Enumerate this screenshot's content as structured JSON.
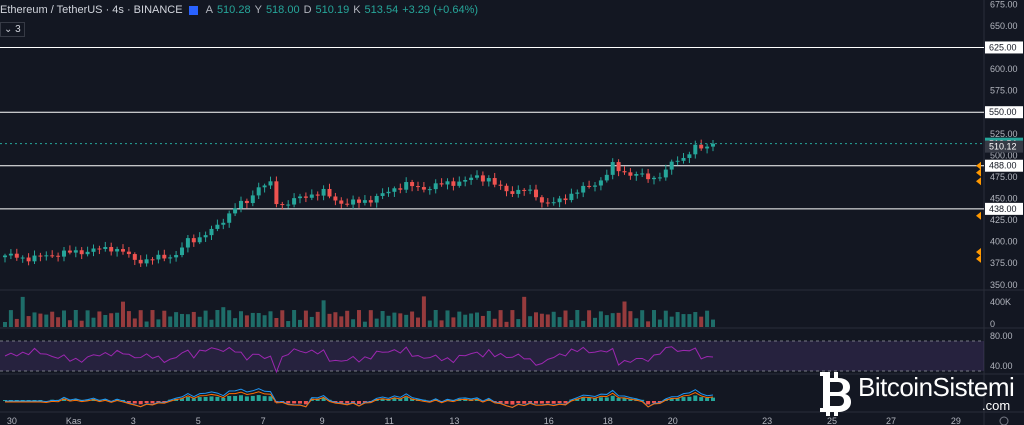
{
  "header": {
    "symbol": "Ethereum / TetherUS · 4s · BINANCE",
    "open_label": "A",
    "open_value": "510.28",
    "high_label": "Y",
    "high_value": "518.00",
    "low_label": "D",
    "low_value": "510.19",
    "close_label": "K",
    "close_value": "513.54",
    "change": "+3.29 (+0.64%)",
    "indicator_count": "3"
  },
  "colors": {
    "background": "#131722",
    "up": "#26a69a",
    "down": "#ef5350",
    "rsi": "#9c27b0",
    "macd": "#2196f3",
    "signal": "#ff6d00",
    "level_line": "#ffffff"
  },
  "chart_data": {
    "type": "candlestick",
    "symbol": "ETH/USDT",
    "price_axis": {
      "ticks": [
        "675.00",
        "650.00",
        "625.00",
        "600.00",
        "575.00",
        "550.00",
        "525.00",
        "500.00",
        "488.00",
        "475.00",
        "450.00",
        "438.00",
        "425.00",
        "400.00",
        "375.00",
        "350.00"
      ],
      "range": [
        344,
        680
      ]
    },
    "levels": [
      {
        "value": 625.0,
        "label": "625.00"
      },
      {
        "value": 550.0,
        "label": "550.00"
      },
      {
        "value": 488.0,
        "label": "488.00"
      },
      {
        "value": 438.0,
        "label": "438.00"
      }
    ],
    "last_price": {
      "value": 513.54,
      "label": "513.54"
    },
    "second_price": {
      "value": 510.12,
      "label": "510.12"
    },
    "time_labels": [
      {
        "label": "30",
        "t": 1
      },
      {
        "label": "Kas",
        "t": 11
      },
      {
        "label": "3",
        "t": 22
      },
      {
        "label": "5",
        "t": 33
      },
      {
        "label": "7",
        "t": 44
      },
      {
        "label": "9",
        "t": 54
      },
      {
        "label": "11",
        "t": 65
      },
      {
        "label": "13",
        "t": 76
      },
      {
        "label": "16",
        "t": 92
      },
      {
        "label": "18",
        "t": 102
      },
      {
        "label": "20",
        "t": 113
      },
      {
        "label": "23",
        "t": 129
      },
      {
        "label": "25",
        "t": 140
      },
      {
        "label": "27",
        "t": 150
      },
      {
        "label": "29",
        "t": 161
      }
    ],
    "close_anchors": [
      [
        0,
        384
      ],
      [
        3,
        381
      ],
      [
        6,
        382
      ],
      [
        9,
        386
      ],
      [
        12,
        388
      ],
      [
        15,
        390
      ],
      [
        18,
        393
      ],
      [
        20,
        388
      ],
      [
        22,
        379
      ],
      [
        24,
        378
      ],
      [
        27,
        383
      ],
      [
        29,
        384
      ],
      [
        31,
        401
      ],
      [
        33,
        405
      ],
      [
        35,
        412
      ],
      [
        37,
        425
      ],
      [
        39,
        440
      ],
      [
        41,
        446
      ],
      [
        43,
        464
      ],
      [
        45,
        466
      ],
      [
        46,
        446
      ],
      [
        47,
        443
      ],
      [
        49,
        448
      ],
      [
        52,
        455
      ],
      [
        54,
        457
      ],
      [
        56,
        448
      ],
      [
        58,
        444
      ],
      [
        60,
        446
      ],
      [
        62,
        449
      ],
      [
        64,
        454
      ],
      [
        66,
        462
      ],
      [
        68,
        466
      ],
      [
        70,
        462
      ],
      [
        72,
        463
      ],
      [
        75,
        468
      ],
      [
        78,
        470
      ],
      [
        80,
        476
      ],
      [
        82,
        472
      ],
      [
        83,
        466
      ],
      [
        84,
        462
      ],
      [
        86,
        458
      ],
      [
        88,
        459
      ],
      [
        90,
        455
      ],
      [
        91,
        446
      ],
      [
        93,
        444
      ],
      [
        95,
        452
      ],
      [
        97,
        458
      ],
      [
        99,
        464
      ],
      [
        101,
        471
      ],
      [
        102,
        478
      ],
      [
        103,
        488
      ],
      [
        104,
        484
      ],
      [
        106,
        478
      ],
      [
        108,
        476
      ],
      [
        110,
        474
      ],
      [
        112,
        480
      ],
      [
        113,
        492
      ],
      [
        115,
        498
      ],
      [
        117,
        508
      ],
      [
        119,
        510
      ],
      [
        120,
        513.54
      ]
    ],
    "volume_axis": {
      "ticks": [
        "400K",
        "0"
      ]
    },
    "rsi_axis": {
      "ticks": [
        "80.00",
        "40.00"
      ]
    }
  },
  "watermark": {
    "name": "BitcoinSistemi",
    "tld": ".com"
  }
}
